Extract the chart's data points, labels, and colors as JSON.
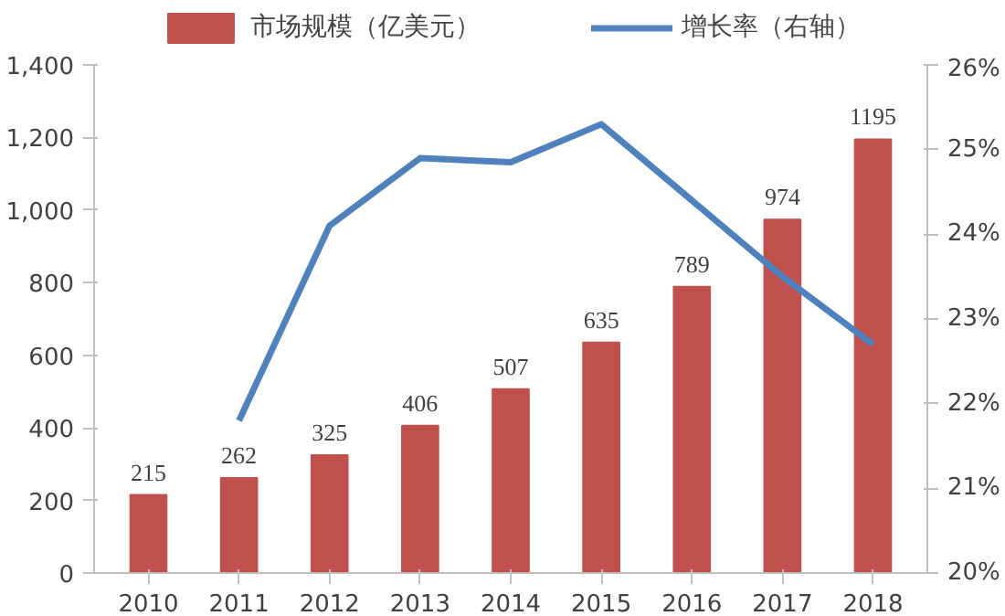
{
  "chart_data": {
    "type": "bar",
    "categories": [
      "2010",
      "2011",
      "2012",
      "2013",
      "2014",
      "2015",
      "2016",
      "2017",
      "2018"
    ],
    "series": [
      {
        "name": "市场规模（亿美元）",
        "color": "#c0504d",
        "values": [
          215,
          262,
          325,
          406,
          507,
          635,
          789,
          974,
          1195
        ],
        "data_labels": true
      },
      {
        "name": "增长率（右轴）",
        "type": "line",
        "axis": "y2",
        "color": "#4f81bd",
        "values": [
          null,
          21.8,
          24.1,
          24.9,
          24.85,
          25.3,
          24.4,
          23.5,
          22.7
        ]
      }
    ],
    "ylim": [
      0,
      1400
    ],
    "yticks": [
      0,
      {
        "value": 200,
        "label": "200"
      },
      {
        "value": 400,
        "label": "400"
      },
      {
        "value": 600,
        "label": "600"
      },
      {
        "value": 800,
        "label": "800"
      },
      {
        "value": 1000,
        "label": "1,000"
      },
      {
        "value": 1200,
        "label": "1,200"
      },
      {
        "value": 1400,
        "label": "1,400"
      }
    ],
    "y2lim": [
      20,
      26
    ],
    "y2ticks": [
      {
        "value": 20,
        "label": "20%"
      },
      {
        "value": 21,
        "label": "21%"
      },
      {
        "value": 22,
        "label": "22%"
      },
      {
        "value": 23,
        "label": "23%"
      },
      {
        "value": 24,
        "label": "24%"
      },
      {
        "value": 25,
        "label": "25%"
      },
      {
        "value": 26,
        "label": "26%"
      }
    ],
    "grid": false,
    "legend": "top",
    "line_style": "solid",
    "marker": "none"
  }
}
